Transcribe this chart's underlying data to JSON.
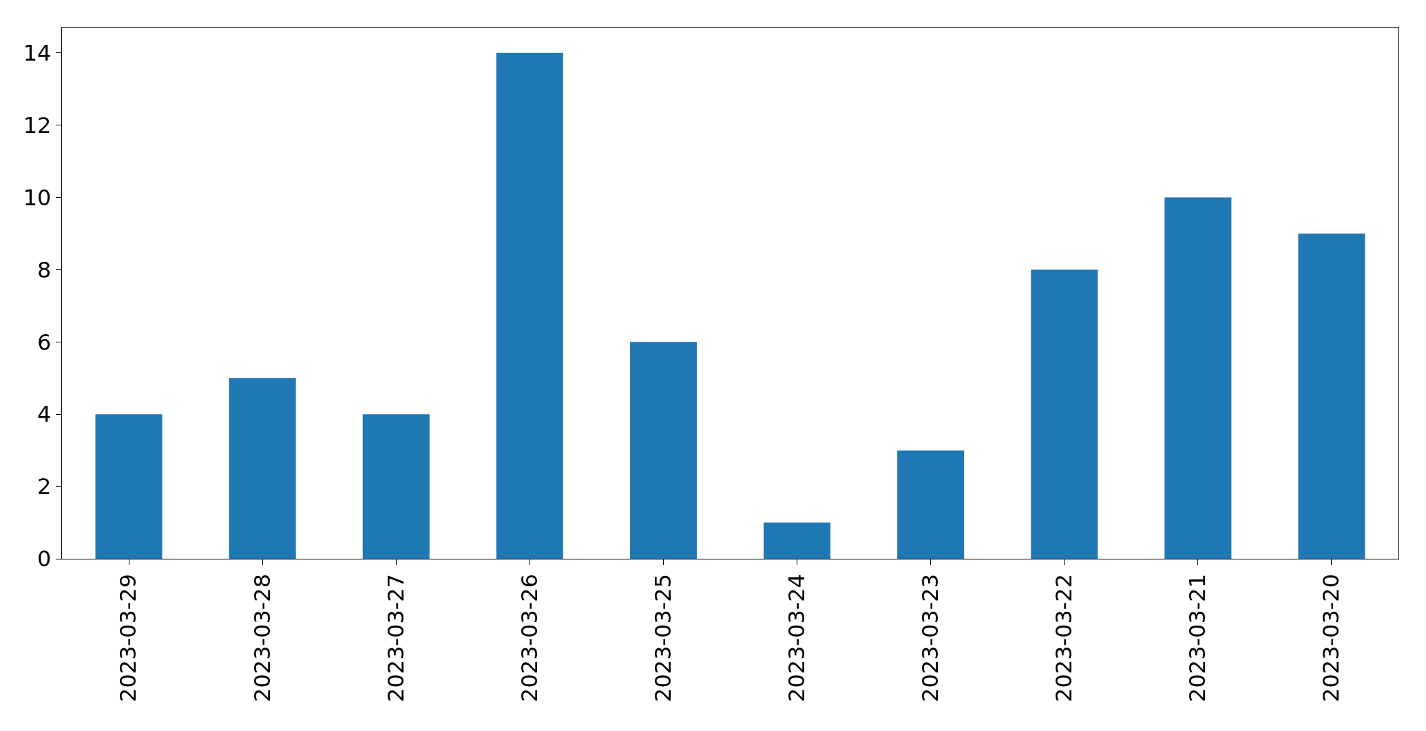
{
  "chart_data": {
    "type": "bar",
    "categories": [
      "2023-03-29",
      "2023-03-28",
      "2023-03-27",
      "2023-03-26",
      "2023-03-25",
      "2023-03-24",
      "2023-03-23",
      "2023-03-22",
      "2023-03-21",
      "2023-03-20"
    ],
    "values": [
      4,
      5,
      4,
      14,
      6,
      1,
      3,
      8,
      10,
      9
    ],
    "color": "#1f77b4",
    "ylim": [
      0,
      14.7
    ],
    "yticks": [
      0,
      2,
      4,
      6,
      8,
      10,
      12,
      14
    ]
  }
}
